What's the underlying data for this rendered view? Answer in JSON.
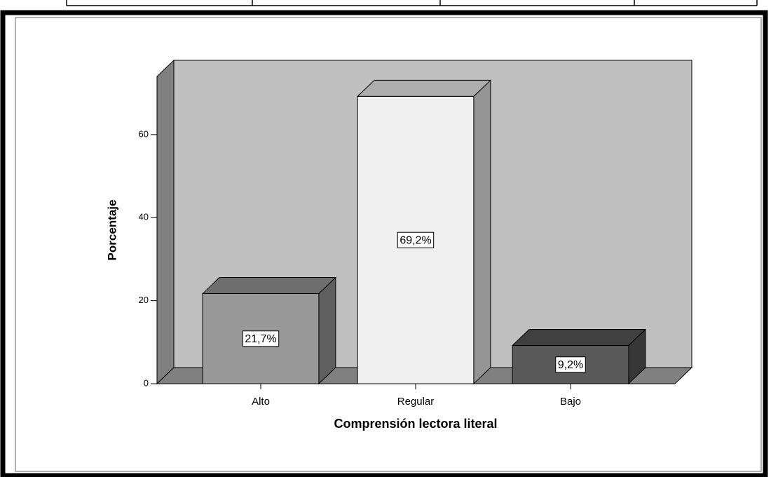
{
  "chart_data": {
    "type": "bar3d",
    "categories": [
      "Alto",
      "Regular",
      "Bajo"
    ],
    "values": [
      21.7,
      69.2,
      9.2
    ],
    "value_labels": [
      "21,7%",
      "69,2%",
      "9,2%"
    ],
    "colors": [
      "#999999",
      "#f0f0f0",
      "#595959"
    ],
    "xlabel": "Comprensión lectora literal",
    "ylabel": "Porcentaje",
    "ylim": [
      0,
      74
    ],
    "yticks": [
      0,
      20,
      40,
      60
    ]
  }
}
